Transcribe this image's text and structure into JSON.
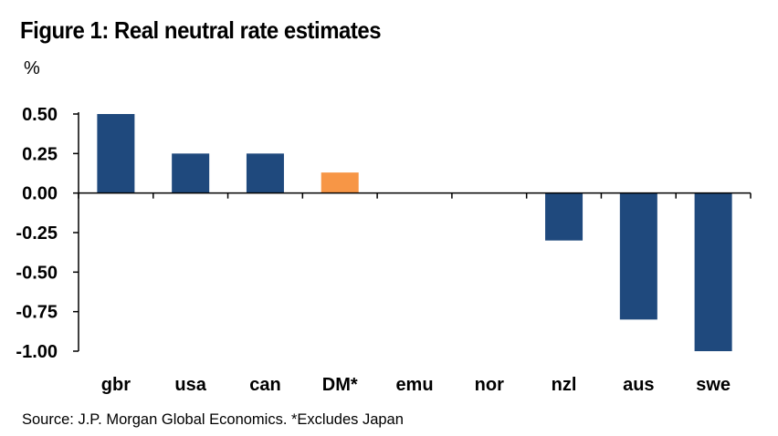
{
  "title": "Figure 1: Real neutral rate estimates",
  "unit_label": "%",
  "source": "Source: J.P. Morgan Global Economics. *Excludes Japan",
  "colors": {
    "default_bar": "#1F497D",
    "highlight_bar": "#F79646",
    "axis": "#000000"
  },
  "chart_data": {
    "type": "bar",
    "title": "Figure 1: Real neutral rate estimates",
    "xlabel": "",
    "ylabel": "%",
    "categories": [
      "gbr",
      "usa",
      "can",
      "DM*",
      "emu",
      "nor",
      "nzl",
      "aus",
      "swe"
    ],
    "values": [
      0.5,
      0.25,
      0.25,
      0.13,
      0,
      0,
      -0.3,
      -0.8,
      -1.0
    ],
    "highlight_categories": [
      "DM*"
    ],
    "ylim": [
      -1.0,
      0.5
    ],
    "yticks": [
      "0.50",
      "0.25",
      "0.00",
      "-0.25",
      "-0.50",
      "-0.75",
      "-1.00"
    ],
    "grid": false,
    "legend": "none"
  }
}
